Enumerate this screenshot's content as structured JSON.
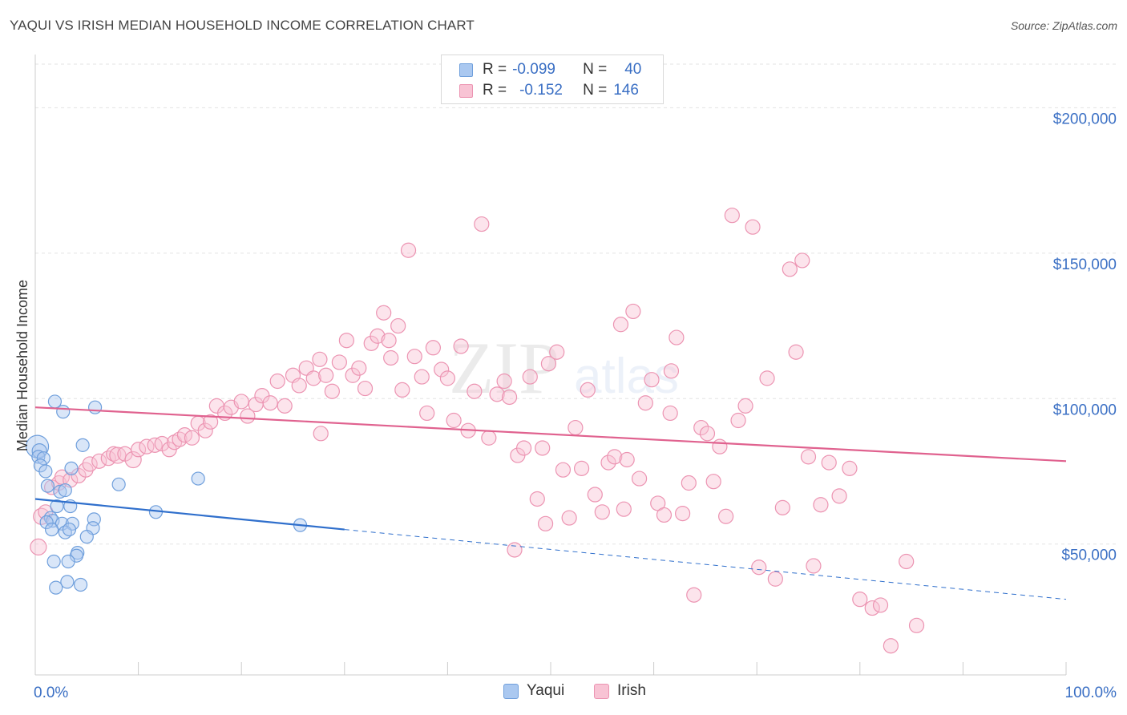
{
  "header": {
    "title": "YAQUI VS IRISH MEDIAN HOUSEHOLD INCOME CORRELATION CHART",
    "source": "Source: ZipAtlas.com"
  },
  "watermark": {
    "zip": "ZIP",
    "atlas": "atlas"
  },
  "colors": {
    "yaqui_fill": "#aac8f0",
    "yaqui_stroke": "#6f9fdc",
    "yaqui_line": "#2f6fcc",
    "irish_fill": "#f8c3d4",
    "irish_stroke": "#ec94b2",
    "irish_line": "#e0628f",
    "axis_label": "#3a6fc4"
  },
  "legend": {
    "yaqui": {
      "r_label": "R =",
      "r_value": "-0.099",
      "n_label": "N =",
      "n_value": "40"
    },
    "irish": {
      "r_label": "R =",
      "r_value": "-0.152",
      "n_label": "N =",
      "n_value": "146"
    }
  },
  "bottom_legend": {
    "yaqui": "Yaqui",
    "irish": "Irish"
  },
  "chart_data": {
    "type": "scatter",
    "title": "YAQUI VS IRISH MEDIAN HOUSEHOLD INCOME CORRELATION CHART",
    "xlabel": "",
    "ylabel": "Median Household Income",
    "xlim": [
      0,
      100
    ],
    "ylim": [
      5000,
      215000
    ],
    "x_tick_labels": [
      "0.0%",
      "100.0%"
    ],
    "y_ticks": [
      {
        "value": 50000,
        "label": "$50,000"
      },
      {
        "value": 100000,
        "label": "$100,000"
      },
      {
        "value": 150000,
        "label": "$150,000"
      },
      {
        "value": 200000,
        "label": "$200,000"
      }
    ],
    "grid": true,
    "series": [
      {
        "name": "Yaqui",
        "trend": {
          "x0": 0,
          "y0": 65500,
          "x1": 30,
          "y1": 55000,
          "x_dash_end": 100,
          "y_dash_end": 31000
        },
        "points": [
          [
            0.2,
            83500,
            14
          ],
          [
            0.4,
            82000,
            9
          ],
          [
            0.3,
            80000,
            8
          ],
          [
            0.8,
            79500,
            8
          ],
          [
            0.5,
            77000,
            8
          ],
          [
            1.0,
            75000,
            8
          ],
          [
            1.9,
            99000,
            8
          ],
          [
            2.7,
            95500,
            8
          ],
          [
            5.8,
            97000,
            8
          ],
          [
            4.6,
            84000,
            8
          ],
          [
            3.5,
            76000,
            8
          ],
          [
            1.2,
            70000,
            8
          ],
          [
            2.4,
            68000,
            8
          ],
          [
            2.9,
            68500,
            8
          ],
          [
            8.1,
            70500,
            8
          ],
          [
            15.8,
            72500,
            8
          ],
          [
            2.1,
            63000,
            8
          ],
          [
            3.4,
            63000,
            8
          ],
          [
            1.5,
            59000,
            8
          ],
          [
            1.7,
            58000,
            8
          ],
          [
            1.1,
            57500,
            8
          ],
          [
            2.6,
            57000,
            8
          ],
          [
            3.6,
            57000,
            8
          ],
          [
            5.7,
            58500,
            8
          ],
          [
            11.7,
            61000,
            8
          ],
          [
            25.7,
            56500,
            8
          ],
          [
            1.6,
            55000,
            8
          ],
          [
            2.9,
            54000,
            8
          ],
          [
            3.3,
            55000,
            8
          ],
          [
            5.6,
            55500,
            8
          ],
          [
            5.0,
            52500,
            8
          ],
          [
            4.1,
            47000,
            8
          ],
          [
            4.0,
            46000,
            8
          ],
          [
            1.8,
            44000,
            8
          ],
          [
            3.2,
            44000,
            8
          ],
          [
            3.1,
            37000,
            8
          ],
          [
            4.4,
            36000,
            8
          ],
          [
            2.0,
            35000,
            8
          ]
        ]
      },
      {
        "name": "Irish",
        "trend": {
          "x0": 0,
          "y0": 97000,
          "x1": 100,
          "y1": 78500
        },
        "points": [
          [
            0.3,
            49000,
            10
          ],
          [
            0.6,
            59500,
            10
          ],
          [
            1.0,
            61000,
            9
          ],
          [
            1.6,
            69500,
            9
          ],
          [
            2.3,
            71000,
            9
          ],
          [
            2.6,
            73000,
            9
          ],
          [
            3.4,
            72000,
            9
          ],
          [
            4.2,
            73500,
            9
          ],
          [
            4.9,
            75500,
            9
          ],
          [
            5.3,
            77500,
            9
          ],
          [
            6.2,
            78500,
            9
          ],
          [
            7.1,
            79500,
            9
          ],
          [
            7.6,
            81000,
            9
          ],
          [
            8.0,
            80500,
            10
          ],
          [
            8.7,
            81000,
            9
          ],
          [
            9.5,
            79000,
            10
          ],
          [
            10.0,
            82500,
            9
          ],
          [
            10.8,
            83500,
            9
          ],
          [
            11.6,
            84000,
            9
          ],
          [
            12.3,
            84500,
            9
          ],
          [
            13.0,
            82500,
            9
          ],
          [
            13.5,
            85000,
            9
          ],
          [
            14.0,
            86000,
            9
          ],
          [
            14.5,
            87500,
            9
          ],
          [
            15.2,
            86500,
            9
          ],
          [
            15.8,
            91500,
            9
          ],
          [
            16.5,
            89000,
            9
          ],
          [
            17.0,
            92000,
            9
          ],
          [
            17.6,
            97500,
            9
          ],
          [
            18.4,
            95000,
            9
          ],
          [
            19.0,
            97000,
            9
          ],
          [
            20.0,
            99000,
            9
          ],
          [
            20.6,
            94000,
            9
          ],
          [
            21.4,
            98000,
            9
          ],
          [
            22.0,
            101000,
            9
          ],
          [
            22.8,
            98500,
            9
          ],
          [
            23.5,
            106000,
            9
          ],
          [
            24.2,
            97500,
            9
          ],
          [
            25.0,
            108000,
            9
          ],
          [
            25.6,
            104500,
            9
          ],
          [
            26.3,
            110500,
            9
          ],
          [
            27.0,
            107000,
            9
          ],
          [
            27.6,
            113500,
            9
          ],
          [
            28.2,
            108000,
            9
          ],
          [
            28.8,
            102500,
            9
          ],
          [
            29.5,
            112500,
            9
          ],
          [
            30.2,
            120000,
            9
          ],
          [
            30.8,
            108000,
            9
          ],
          [
            31.4,
            110500,
            9
          ],
          [
            32.0,
            103500,
            9
          ],
          [
            32.6,
            119000,
            9
          ],
          [
            33.2,
            121500,
            9
          ],
          [
            33.8,
            129500,
            9
          ],
          [
            34.5,
            114000,
            9
          ],
          [
            35.2,
            125000,
            9
          ],
          [
            35.6,
            103000,
            9
          ],
          [
            36.2,
            151000,
            9
          ],
          [
            36.8,
            114500,
            9
          ],
          [
            37.5,
            107500,
            9
          ],
          [
            38.0,
            95000,
            9
          ],
          [
            38.6,
            117500,
            9
          ],
          [
            39.4,
            110000,
            9
          ],
          [
            40.0,
            107000,
            9
          ],
          [
            40.6,
            92500,
            9
          ],
          [
            41.3,
            118000,
            9
          ],
          [
            42.0,
            89000,
            9
          ],
          [
            42.6,
            102500,
            9
          ],
          [
            43.3,
            160000,
            9
          ],
          [
            44.0,
            86500,
            9
          ],
          [
            44.8,
            101500,
            9
          ],
          [
            45.5,
            106000,
            9
          ],
          [
            46.0,
            100500,
            9
          ],
          [
            46.8,
            80500,
            9
          ],
          [
            47.4,
            83000,
            9
          ],
          [
            48.0,
            107500,
            9
          ],
          [
            48.7,
            65500,
            9
          ],
          [
            49.2,
            83000,
            9
          ],
          [
            49.8,
            112000,
            9
          ],
          [
            50.6,
            116000,
            9
          ],
          [
            51.2,
            75500,
            9
          ],
          [
            51.8,
            59000,
            9
          ],
          [
            52.4,
            90000,
            9
          ],
          [
            53.0,
            76000,
            9
          ],
          [
            53.6,
            103000,
            9
          ],
          [
            54.3,
            67000,
            9
          ],
          [
            55.0,
            61000,
            9
          ],
          [
            55.6,
            78000,
            9
          ],
          [
            56.2,
            80000,
            9
          ],
          [
            56.8,
            125500,
            9
          ],
          [
            57.4,
            79000,
            9
          ],
          [
            58.0,
            130000,
            9
          ],
          [
            58.6,
            72500,
            9
          ],
          [
            59.2,
            98500,
            9
          ],
          [
            59.8,
            106500,
            9
          ],
          [
            60.4,
            64000,
            9
          ],
          [
            61.0,
            60000,
            9
          ],
          [
            61.6,
            95000,
            9
          ],
          [
            62.2,
            121000,
            9
          ],
          [
            62.8,
            60500,
            9
          ],
          [
            63.4,
            71000,
            9
          ],
          [
            63.9,
            32500,
            9
          ],
          [
            64.6,
            90000,
            9
          ],
          [
            65.2,
            88000,
            9
          ],
          [
            65.8,
            71500,
            9
          ],
          [
            66.4,
            83500,
            9
          ],
          [
            67.0,
            59500,
            9
          ],
          [
            67.6,
            163000,
            9
          ],
          [
            68.2,
            92500,
            9
          ],
          [
            68.9,
            97500,
            9
          ],
          [
            69.6,
            159000,
            9
          ],
          [
            70.2,
            42000,
            9
          ],
          [
            71.0,
            107000,
            9
          ],
          [
            71.8,
            38000,
            9
          ],
          [
            72.5,
            62500,
            9
          ],
          [
            73.2,
            144500,
            9
          ],
          [
            73.8,
            116000,
            9
          ],
          [
            74.4,
            147500,
            9
          ],
          [
            75.0,
            80000,
            9
          ],
          [
            75.5,
            42500,
            9
          ],
          [
            76.2,
            63500,
            9
          ],
          [
            77.0,
            78000,
            9
          ],
          [
            78.0,
            66500,
            9
          ],
          [
            79.0,
            76000,
            9
          ],
          [
            80.0,
            31000,
            9
          ],
          [
            81.2,
            28000,
            9
          ],
          [
            82.0,
            29000,
            9
          ],
          [
            83.0,
            15000,
            9
          ],
          [
            84.5,
            44000,
            9
          ],
          [
            85.5,
            22000,
            9
          ],
          [
            46.5,
            48000,
            9
          ],
          [
            27.7,
            88000,
            9
          ],
          [
            34.3,
            120000,
            9
          ],
          [
            57.1,
            62000,
            9
          ],
          [
            61.7,
            109500,
            9
          ],
          [
            49.5,
            57000,
            9
          ]
        ]
      }
    ]
  }
}
